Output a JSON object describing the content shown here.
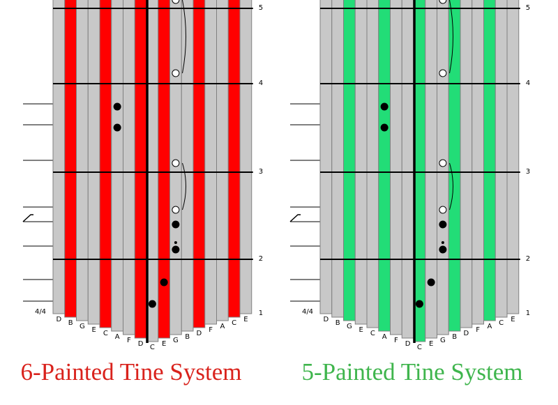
{
  "panels": [
    {
      "caption": "6-Painted Tine System",
      "paint_color": "#ff0000",
      "time_signature": "4/4",
      "measures": [
        "5",
        "4",
        "3",
        "2",
        "1"
      ],
      "tines": [
        {
          "label": "D",
          "painted": false
        },
        {
          "label": "B",
          "painted": true
        },
        {
          "label": "G",
          "painted": false
        },
        {
          "label": "E",
          "painted": false
        },
        {
          "label": "C",
          "painted": true
        },
        {
          "label": "A",
          "painted": false
        },
        {
          "label": "F",
          "painted": false
        },
        {
          "label": "D",
          "painted": true
        },
        {
          "label": "C",
          "painted": false
        },
        {
          "label": "E",
          "painted": true
        },
        {
          "label": "G",
          "painted": false
        },
        {
          "label": "B",
          "painted": false
        },
        {
          "label": "D",
          "painted": true
        },
        {
          "label": "F",
          "painted": false
        },
        {
          "label": "A",
          "painted": false
        },
        {
          "label": "C",
          "painted": true
        },
        {
          "label": "E",
          "painted": false
        }
      ]
    },
    {
      "caption": "5-Painted Tine System",
      "paint_color": "#22dd77",
      "time_signature": "4/4",
      "measures": [
        "5",
        "4",
        "3",
        "2",
        "1"
      ],
      "tines": [
        {
          "label": "D",
          "painted": false
        },
        {
          "label": "B",
          "painted": false
        },
        {
          "label": "G",
          "painted": true
        },
        {
          "label": "E",
          "painted": false
        },
        {
          "label": "C",
          "painted": false
        },
        {
          "label": "A",
          "painted": true
        },
        {
          "label": "F",
          "painted": false
        },
        {
          "label": "D",
          "painted": false
        },
        {
          "label": "C",
          "painted": true
        },
        {
          "label": "E",
          "painted": false
        },
        {
          "label": "G",
          "painted": false
        },
        {
          "label": "B",
          "painted": true
        },
        {
          "label": "D",
          "painted": false
        },
        {
          "label": "F",
          "painted": false
        },
        {
          "label": "A",
          "painted": true
        },
        {
          "label": "C",
          "painted": false
        },
        {
          "label": "E",
          "painted": false
        }
      ]
    }
  ]
}
